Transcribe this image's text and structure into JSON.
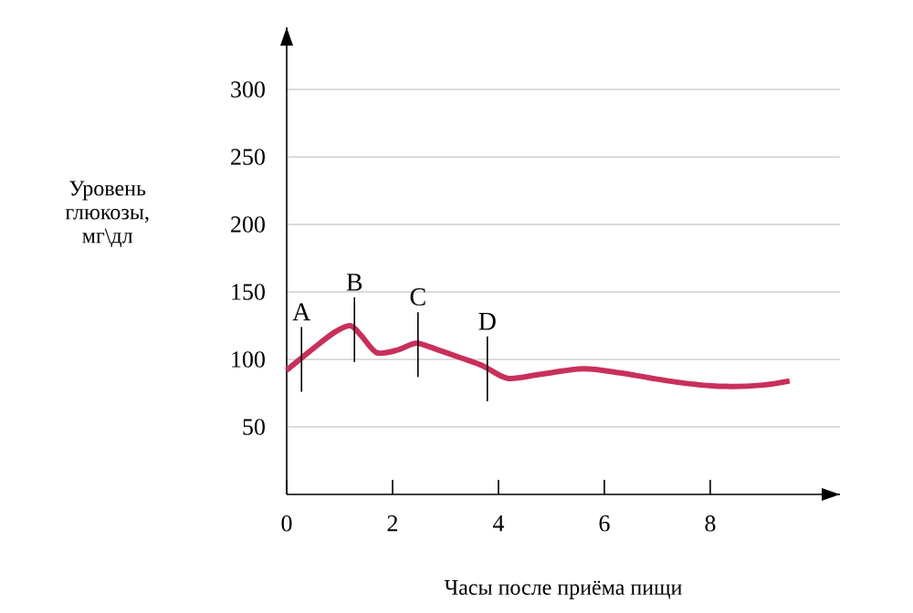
{
  "chart_data": {
    "type": "line",
    "xlabel": "Часы после приёма пищи",
    "ylabel": "Уровень глюкозы, мг\\дл",
    "x": [
      0,
      0.5,
      0.9,
      1.2,
      1.4,
      1.7,
      2.1,
      2.45,
      2.86,
      3.3,
      3.72,
      4.17,
      4.8,
      5.6,
      6.3,
      6.9,
      7.6,
      8.3,
      9,
      9.5
    ],
    "series": [
      {
        "color": "#c8305a",
        "values": [
          92,
          108,
          120,
          125,
          118,
          105,
          107,
          112,
          107,
          101,
          95,
          86,
          89,
          93,
          90,
          86,
          82,
          80,
          81,
          84
        ]
      }
    ],
    "annotations": [
      {
        "text": "A",
        "x": 0.28,
        "y": 100
      },
      {
        "text": "B",
        "x": 1.28,
        "y": 122
      },
      {
        "text": "C",
        "x": 2.48,
        "y": 111
      },
      {
        "text": "D",
        "x": 3.79,
        "y": 93
      }
    ],
    "xlim": [
      0,
      10.45
    ],
    "ylim": [
      0,
      346
    ],
    "xticks": [
      0,
      2,
      4,
      6,
      8
    ],
    "yticks": [
      50,
      100,
      150,
      200,
      250,
      300
    ],
    "grid": "y",
    "marker": "none",
    "line_style": "solid"
  }
}
